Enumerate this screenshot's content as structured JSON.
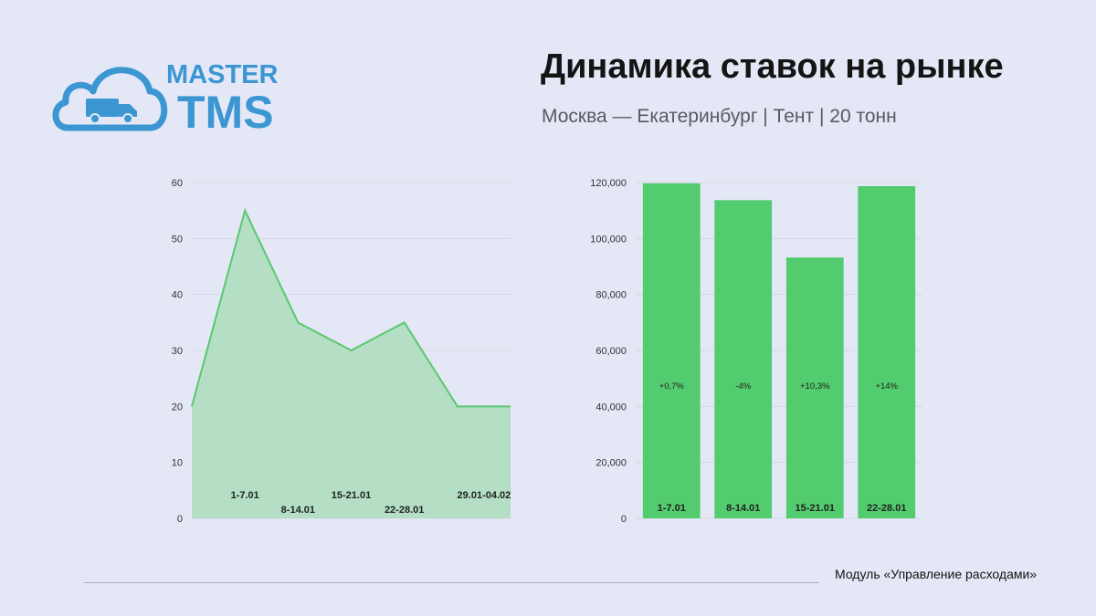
{
  "brand": {
    "name_top": "MASTER",
    "name_bottom": "TMS",
    "color": "#3b96d2"
  },
  "header": {
    "title": "Динамика ставок на рынке",
    "subtitle": "Москва — Екатеринбург | Тент | 20 тонн"
  },
  "footer": {
    "module": "Модуль «Управление расходами»"
  },
  "colors": {
    "area_fill": "#b4dfc4",
    "area_line": "#5cc76f",
    "bar_fill": "#52cc6e",
    "grid": "#d3d6e2"
  },
  "chart_data": [
    {
      "type": "area",
      "title": "",
      "xlabel": "",
      "ylabel": "",
      "x": [
        0,
        1,
        2,
        3,
        4,
        5,
        6
      ],
      "values": [
        20,
        55,
        35,
        30,
        35,
        20,
        20
      ],
      "categories": [
        "1-7.01",
        "8-14.01",
        "15-21.01",
        "22-28.01",
        "29.01-04.02"
      ],
      "yticks": [
        "0",
        "10",
        "20",
        "30",
        "40",
        "50",
        "60"
      ],
      "ylim": [
        0,
        60
      ],
      "grid": true
    },
    {
      "type": "bar",
      "title": "",
      "xlabel": "",
      "ylabel": "",
      "categories": [
        "1-7.01",
        "8-14.01",
        "15-21.01",
        "22-28.01"
      ],
      "values": [
        119700,
        113700,
        93200,
        118700
      ],
      "change_labels": [
        "+0,7%",
        "-4%",
        "+10,3%",
        "+14%"
      ],
      "yticks": [
        "0",
        "20,000",
        "40,000",
        "60,000",
        "80,000",
        "100,000",
        "120,000"
      ],
      "ylim": [
        0,
        120000
      ],
      "grid": true
    }
  ]
}
